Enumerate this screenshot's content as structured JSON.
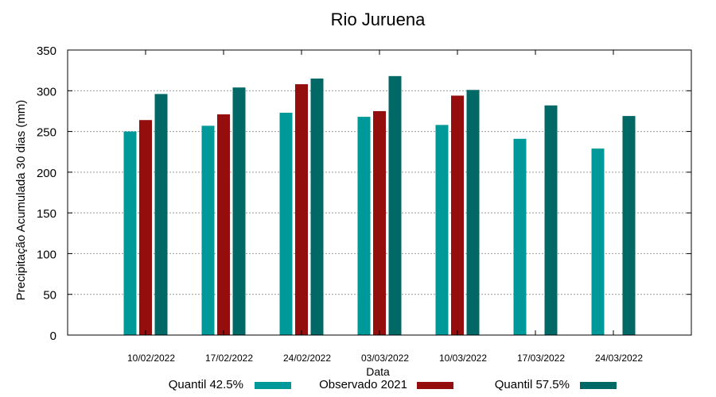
{
  "chart_data": {
    "type": "bar",
    "title": "Rio Juruena",
    "xlabel": "Data",
    "ylabel": "Precipitação Acumulada 30 dias (mm)",
    "ylim": [
      0,
      350
    ],
    "yticks": [
      0,
      50,
      100,
      150,
      200,
      250,
      300,
      350
    ],
    "grid": true,
    "legend": "bottom",
    "categories": [
      "10/02/2022",
      "17/02/2022",
      "24/02/2022",
      "03/03/2022",
      "10/03/2022",
      "17/03/2022",
      "24/03/2022"
    ],
    "series": [
      {
        "name": "Quantil 42.5%",
        "color": "#009999",
        "values": [
          250,
          257,
          273,
          268,
          258,
          241,
          229
        ]
      },
      {
        "name": "Observado 2021",
        "color": "#940e0e",
        "values": [
          264,
          271,
          308,
          275,
          294,
          null,
          null
        ]
      },
      {
        "name": "Quantil 57.5%",
        "color": "#006966",
        "values": [
          296,
          304,
          315,
          318,
          301,
          282,
          269
        ]
      }
    ]
  }
}
